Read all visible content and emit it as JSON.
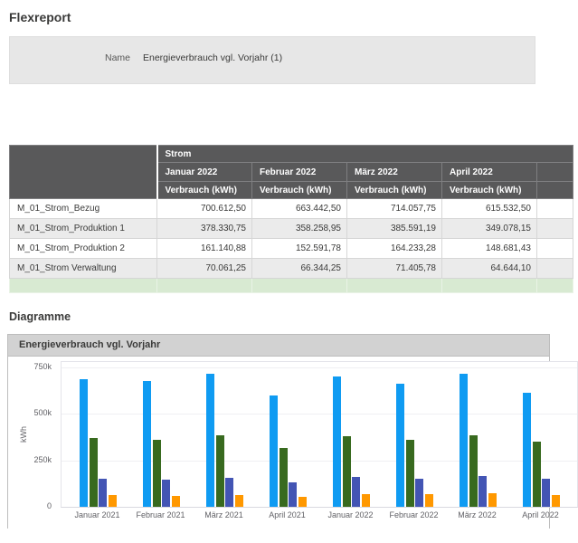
{
  "page": {
    "title": "Flexreport"
  },
  "report_info": {
    "name_label": "Name",
    "name_value": "Energieverbrauch vgl. Vorjahr (1)"
  },
  "icons": {
    "menu": "hamburger-menu"
  },
  "table": {
    "group_header": "Strom",
    "columns": [
      "Januar 2022",
      "Februar 2022",
      "März 2022",
      "April 2022"
    ],
    "subheader": "Verbrauch (kWh)",
    "rows": [
      {
        "label": "M_01_Strom_Bezug",
        "values": [
          "700.612,50",
          "663.442,50",
          "714.057,75",
          "615.532,50"
        ]
      },
      {
        "label": "M_01_Strom_Produktion 1",
        "values": [
          "378.330,75",
          "358.258,95",
          "385.591,19",
          "349.078,15"
        ]
      },
      {
        "label": "M_01_Strom_Produktion 2",
        "values": [
          "161.140,88",
          "152.591,78",
          "164.233,28",
          "148.681,43"
        ]
      },
      {
        "label": "M_01_Strom Verwaltung",
        "values": [
          "70.061,25",
          "66.344,25",
          "71.405,78",
          "64.644,10"
        ]
      }
    ]
  },
  "sections": {
    "diagrams_title": "Diagramme"
  },
  "chart": {
    "panel_title": "Energieverbrauch vgl. Vorjahr"
  },
  "chart_data": {
    "type": "bar",
    "title": "Energieverbrauch vgl. Vorjahr",
    "xlabel": "",
    "ylabel": "kWh",
    "ylim": [
      0,
      780000
    ],
    "grid": true,
    "legend": "none",
    "yticks": [
      {
        "value": 0,
        "label": "0"
      },
      {
        "value": 250000,
        "label": "250k"
      },
      {
        "value": 500000,
        "label": "500k"
      },
      {
        "value": 750000,
        "label": "750k"
      }
    ],
    "categories": [
      "Januar 2021",
      "Februar 2021",
      "März 2021",
      "April 2021",
      "Januar 2022",
      "Februar 2022",
      "März 2022",
      "April 2022"
    ],
    "series": [
      {
        "name": "M_01_Strom_Bezug",
        "color": "#0f9bf2",
        "values": [
          685000,
          675000,
          718000,
          598000,
          700612.5,
          663442.5,
          714057.75,
          615532.5
        ]
      },
      {
        "name": "M_01_Strom_Produktion 1",
        "color": "#386a1f",
        "values": [
          370000,
          358000,
          385000,
          318000,
          378330.75,
          358258.95,
          385591.19,
          349078.15
        ]
      },
      {
        "name": "M_01_Strom_Produktion 2",
        "color": "#4355b4",
        "values": [
          152000,
          147000,
          157000,
          131000,
          161140.88,
          152591.78,
          164233.28,
          148681.43
        ]
      },
      {
        "name": "M_01_Strom Verwaltung",
        "color": "#ff9800",
        "values": [
          63000,
          59000,
          62000,
          56000,
          70061.25,
          66344.25,
          71405.78,
          64644.1
        ]
      }
    ]
  },
  "colors": {
    "table_header_bg": "#59595a",
    "row_stripe_bg": "#ebebeb",
    "summary_row_bg": "#d8ead2",
    "panel_header_bg": "#d2d2d2",
    "info_box_bg": "#e7e7e7"
  }
}
